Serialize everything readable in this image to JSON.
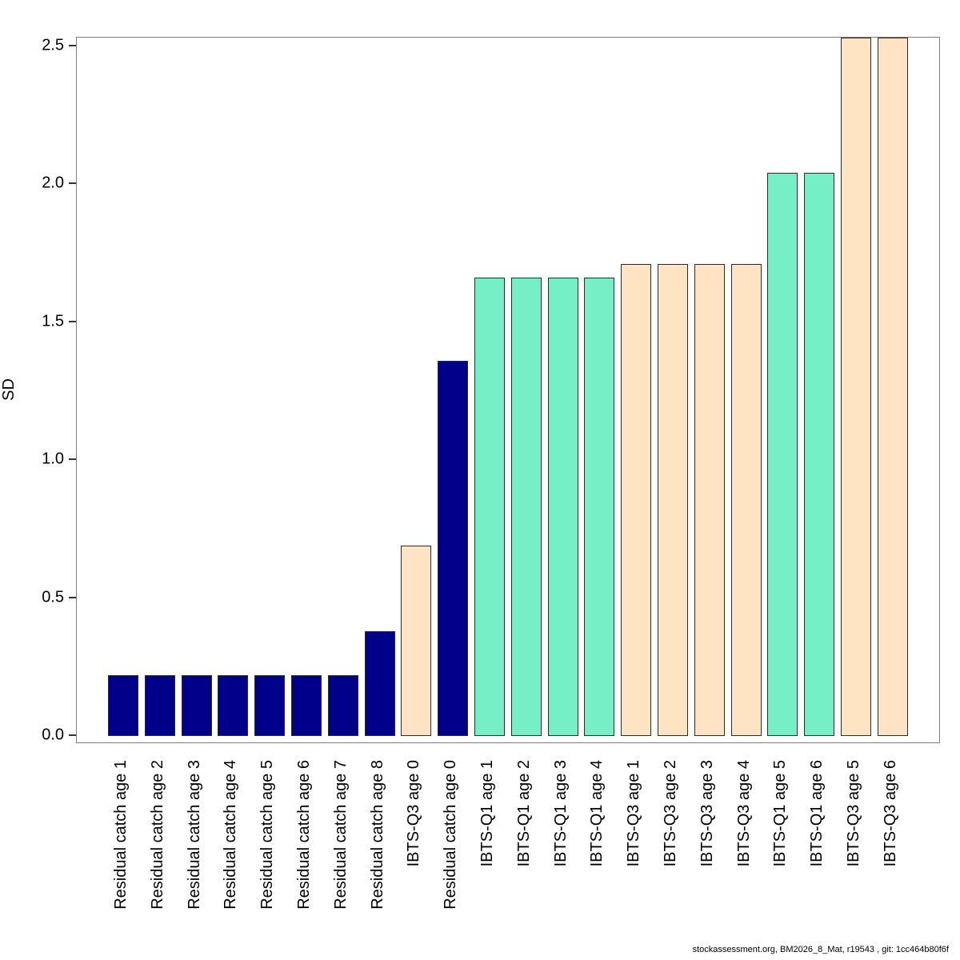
{
  "page": {
    "background": "#ffffff"
  },
  "footer": {
    "text": "stockassessment.org, BM2026_8_Mat, r19543 , git: 1cc464b80f6f"
  },
  "chart_data": {
    "type": "bar",
    "title": "",
    "xlabel": "",
    "ylabel": "SD",
    "ylim": [
      0,
      2.53
    ],
    "yticks": [
      0.0,
      0.5,
      1.0,
      1.5,
      2.0,
      2.5
    ],
    "ytick_labels": [
      "0.0",
      "0.5",
      "1.0",
      "1.5",
      "2.0",
      "2.5"
    ],
    "grid": false,
    "legend_position": "none",
    "categories": [
      "Residual catch age 1",
      "Residual catch age 2",
      "Residual catch age 3",
      "Residual catch age 4",
      "Residual catch age 5",
      "Residual catch age 6",
      "Residual catch age 7",
      "Residual catch age 8",
      "IBTS-Q3 age 0",
      "Residual catch age 0",
      "IBTS-Q1 age 1",
      "IBTS-Q1 age 2",
      "IBTS-Q1 age 3",
      "IBTS-Q1 age 4",
      "IBTS-Q3 age 1",
      "IBTS-Q3 age 2",
      "IBTS-Q3 age 3",
      "IBTS-Q3 age 4",
      "IBTS-Q1 age 5",
      "IBTS-Q1 age 6",
      "IBTS-Q3 age 5",
      "IBTS-Q3 age 6"
    ],
    "values": [
      0.22,
      0.22,
      0.22,
      0.22,
      0.22,
      0.22,
      0.22,
      0.38,
      0.69,
      1.36,
      1.66,
      1.66,
      1.66,
      1.66,
      1.71,
      1.71,
      1.71,
      1.71,
      2.04,
      2.04,
      2.53,
      2.53
    ],
    "bar_colors": [
      "#00008B",
      "#00008B",
      "#00008B",
      "#00008B",
      "#00008B",
      "#00008B",
      "#00008B",
      "#00008B",
      "#FFE4C4",
      "#00008B",
      "#76EEC6",
      "#76EEC6",
      "#76EEC6",
      "#76EEC6",
      "#FFE4C4",
      "#FFE4C4",
      "#FFE4C4",
      "#FFE4C4",
      "#76EEC6",
      "#76EEC6",
      "#FFE4C4",
      "#FFE4C4"
    ],
    "series_color_legend": {
      "residual_catch": "#00008B",
      "ibts_q1": "#76EEC6",
      "ibts_q3": "#FFE4C4"
    }
  }
}
